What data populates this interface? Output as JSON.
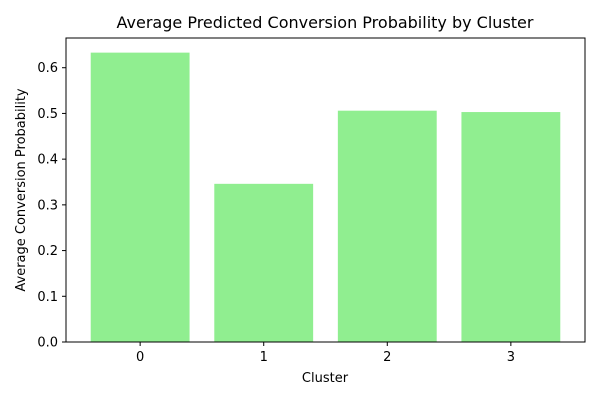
{
  "chart_data": {
    "type": "bar",
    "title": "Average Predicted Conversion Probability by Cluster",
    "xlabel": "Cluster",
    "ylabel": "Average Conversion Probability",
    "categories": [
      "0",
      "1",
      "2",
      "3"
    ],
    "values": [
      0.633,
      0.346,
      0.506,
      0.503
    ],
    "ylim": [
      0,
      0.665
    ],
    "yticks": [
      "0.0",
      "0.1",
      "0.2",
      "0.3",
      "0.4",
      "0.5",
      "0.6"
    ],
    "bar_color": "#90ee90",
    "grid": false,
    "legend": "none"
  }
}
